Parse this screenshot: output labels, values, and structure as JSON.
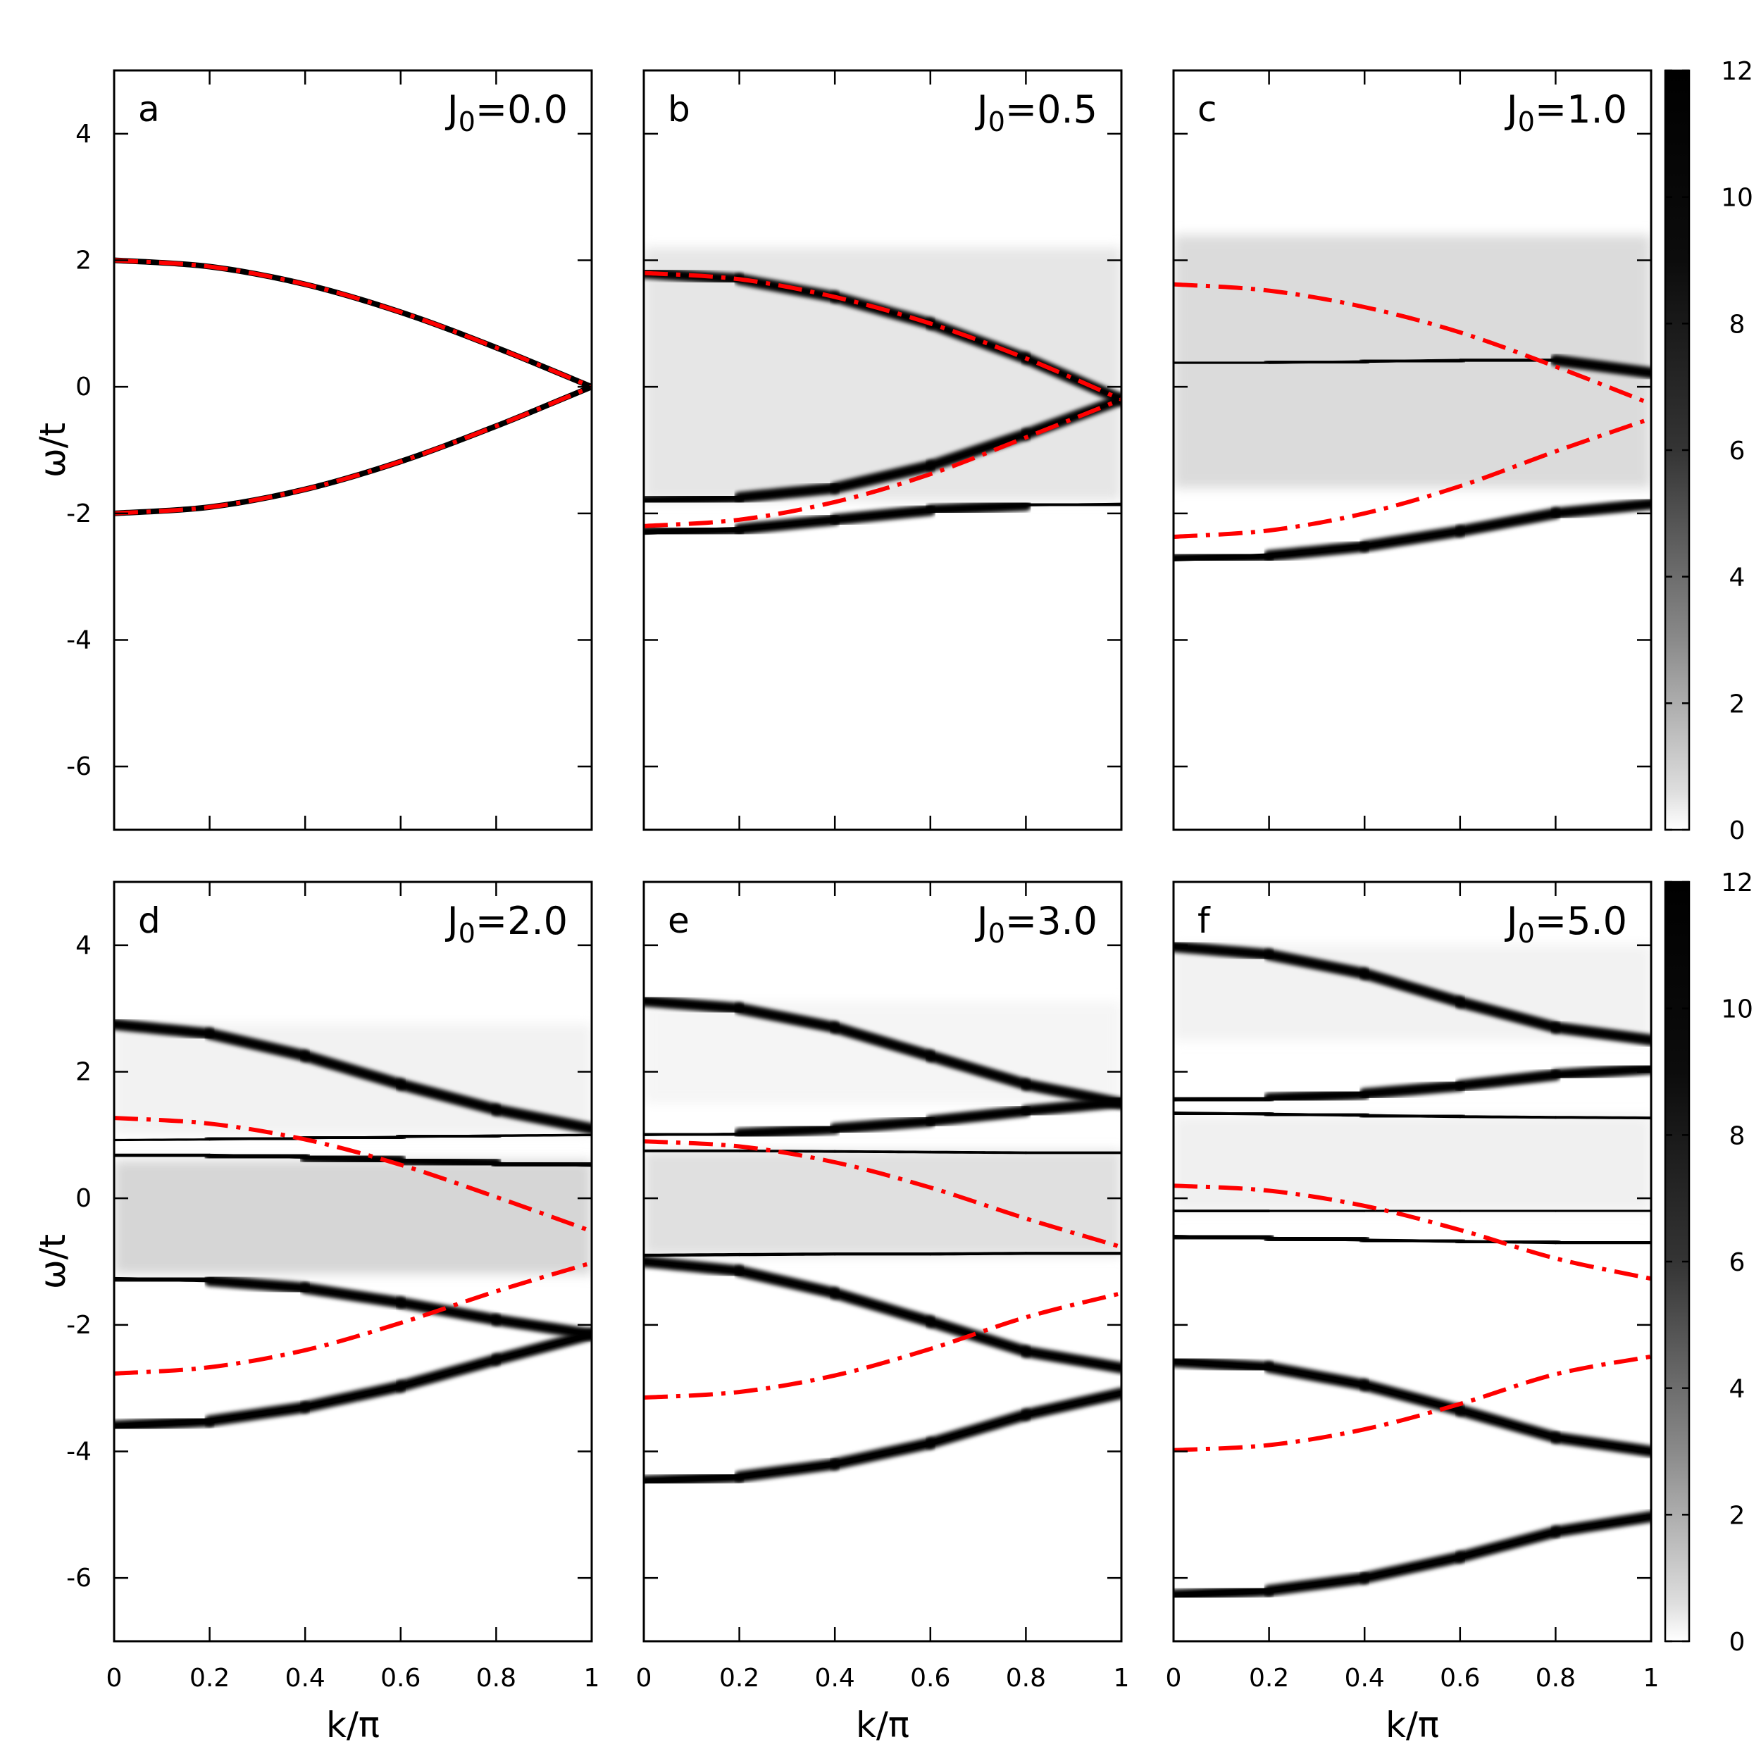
{
  "chart_data": {
    "type": "heatmap",
    "x_label_main": "k/",
    "x_label_pi": "π",
    "y_label_main": "ω/t",
    "xlim": [
      0,
      1
    ],
    "ylim": [
      -7,
      5
    ],
    "x_ticks": [
      "0",
      "0.2",
      "0.4",
      "0.6",
      "0.8",
      "1"
    ],
    "x_tick_values": [
      0,
      0.2,
      0.4,
      0.6,
      0.8,
      1
    ],
    "y_ticks": [
      "4",
      "2",
      "0",
      "-2",
      "-4",
      "-6"
    ],
    "y_tick_values": [
      4,
      2,
      0,
      -2,
      -4,
      -6
    ],
    "colorbar": {
      "range": [
        0,
        12
      ],
      "ticks": [
        "12",
        "10",
        "8",
        "6",
        "4",
        "2",
        "0"
      ],
      "tick_values": [
        12,
        10,
        8,
        6,
        4,
        2,
        0
      ],
      "colormap": "white-to-black"
    },
    "panels": [
      {
        "letter": "a",
        "param_symbol": "J",
        "param_sub": "0",
        "param_value": "=0.0",
        "red_curves": [
          {
            "x": [
              0,
              0.2,
              0.4,
              0.6,
              0.8,
              1.0
            ],
            "y": [
              2.0,
              1.9,
              1.62,
              1.18,
              0.62,
              0.0
            ]
          },
          {
            "x": [
              0,
              0.2,
              0.4,
              0.6,
              0.8,
              1.0
            ],
            "y": [
              -2.0,
              -1.9,
              -1.62,
              -1.18,
              -0.62,
              0.0
            ]
          }
        ],
        "sharp_bands": [],
        "continua": []
      },
      {
        "letter": "b",
        "param_symbol": "J",
        "param_sub": "0",
        "param_value": "=0.5",
        "red_curves": [
          {
            "x": [
              0,
              0.2,
              0.4,
              0.6,
              0.8,
              1.0
            ],
            "y": [
              1.8,
              1.7,
              1.42,
              1.0,
              0.45,
              -0.2
            ]
          },
          {
            "x": [
              0,
              0.2,
              0.4,
              0.6,
              0.8,
              1.0
            ],
            "y": [
              -2.2,
              -2.1,
              -1.82,
              -1.38,
              -0.8,
              -0.2
            ]
          }
        ],
        "sharp_bands": [
          {
            "x": [
              0,
              0.2,
              0.4,
              0.6,
              0.8,
              1.0
            ],
            "y": [
              -2.3,
              -2.25,
              -2.1,
              -1.95,
              -1.87,
              -1.85
            ],
            "strength": [
              1.0,
              0.9,
              0.7,
              0.35,
              0.15,
              0.08
            ]
          },
          {
            "x": [
              0,
              0.2,
              0.4,
              0.6,
              0.8,
              1.0
            ],
            "y": [
              1.8,
              1.7,
              1.42,
              1.0,
              0.45,
              -0.2
            ],
            "strength": [
              0.15,
              0.2,
              0.3,
              0.4,
              0.55,
              0.6
            ]
          },
          {
            "x": [
              0,
              0.2,
              0.4,
              0.6,
              0.8,
              1.0
            ],
            "y": [
              -1.8,
              -1.75,
              -1.6,
              -1.25,
              -0.75,
              -0.2
            ],
            "strength": [
              0.2,
              0.25,
              0.35,
              0.45,
              0.5,
              0.55
            ]
          }
        ],
        "continua": [
          {
            "y_top": 2.2,
            "y_bottom": -1.8,
            "strength": 0.1
          }
        ]
      },
      {
        "letter": "c",
        "param_symbol": "J",
        "param_sub": "0",
        "param_value": "=1.0",
        "red_curves": [
          {
            "x": [
              0,
              0.2,
              0.4,
              0.6,
              0.8,
              1.0
            ],
            "y": [
              1.62,
              1.52,
              1.26,
              0.86,
              0.32,
              -0.27
            ]
          },
          {
            "x": [
              0,
              0.2,
              0.4,
              0.6,
              0.8,
              1.0
            ],
            "y": [
              -2.37,
              -2.27,
              -2.0,
              -1.57,
              -1.02,
              -0.5
            ]
          }
        ],
        "sharp_bands": [
          {
            "x": [
              0,
              0.2,
              0.4,
              0.6,
              0.8,
              1.0
            ],
            "y": [
              -2.72,
              -2.67,
              -2.52,
              -2.28,
              -2.0,
              -1.85
            ],
            "strength": [
              1.0,
              0.95,
              0.85,
              0.6,
              0.3,
              0.15
            ]
          },
          {
            "x": [
              0,
              0.2,
              0.4,
              0.6,
              0.8,
              1.0
            ],
            "y": [
              0.38,
              0.38,
              0.4,
              0.42,
              0.42,
              0.22
            ],
            "strength": [
              0.08,
              0.1,
              0.15,
              0.3,
              0.45,
              0.3
            ]
          }
        ],
        "continua": [
          {
            "y_top": 2.4,
            "y_bottom": -1.6,
            "strength": 0.14
          }
        ]
      },
      {
        "letter": "d",
        "param_symbol": "J",
        "param_sub": "0",
        "param_value": "=2.0",
        "red_curves": [
          {
            "x": [
              0,
              0.2,
              0.4,
              0.6,
              0.8,
              1.0
            ],
            "y": [
              1.27,
              1.18,
              0.93,
              0.53,
              0.02,
              -0.52
            ]
          },
          {
            "x": [
              0,
              0.2,
              0.4,
              0.6,
              0.8,
              1.0
            ],
            "y": [
              -2.77,
              -2.67,
              -2.4,
              -1.97,
              -1.47,
              -1.02
            ]
          }
        ],
        "sharp_bands": [
          {
            "x": [
              0,
              0.2,
              0.4,
              0.6,
              0.8,
              1.0
            ],
            "y": [
              -3.6,
              -3.52,
              -3.3,
              -2.97,
              -2.55,
              -2.15
            ],
            "strength": [
              1.0,
              1.0,
              1.0,
              0.95,
              0.9,
              0.85
            ]
          },
          {
            "x": [
              0,
              0.2,
              0.4,
              0.6,
              0.8,
              1.0
            ],
            "y": [
              -1.27,
              -1.3,
              -1.42,
              -1.65,
              -1.92,
              -2.15
            ],
            "strength": [
              0.45,
              0.45,
              0.45,
              0.45,
              0.45,
              0.5
            ]
          },
          {
            "x": [
              0,
              0.2,
              0.4,
              0.6,
              0.8,
              1.0
            ],
            "y": [
              0.68,
              0.68,
              0.65,
              0.6,
              0.55,
              0.52
            ],
            "strength": [
              0.4,
              0.4,
              0.35,
              0.3,
              0.3,
              0.25
            ]
          },
          {
            "x": [
              0,
              0.2,
              0.4,
              0.6,
              0.8,
              1.0
            ],
            "y": [
              0.92,
              0.93,
              0.95,
              0.97,
              0.99,
              1.0
            ],
            "strength": [
              0.05,
              0.05,
              0.08,
              0.1,
              0.12,
              0.12
            ]
          },
          {
            "x": [
              0,
              0.2,
              0.4,
              0.6,
              0.8,
              1.0
            ],
            "y": [
              2.75,
              2.6,
              2.25,
              1.8,
              1.4,
              1.1
            ],
            "strength": [
              0.25,
              0.15,
              0.08,
              0.05,
              0.03,
              0.02
            ]
          }
        ],
        "continua": [
          {
            "y_top": 2.75,
            "y_bottom": 1.0,
            "strength": 0.05
          },
          {
            "y_top": 0.6,
            "y_bottom": -1.2,
            "strength": 0.16
          }
        ]
      },
      {
        "letter": "e",
        "param_symbol": "J",
        "param_sub": "0",
        "param_value": "=3.0",
        "red_curves": [
          {
            "x": [
              0,
              0.2,
              0.4,
              0.6,
              0.8,
              1.0
            ],
            "y": [
              0.9,
              0.82,
              0.57,
              0.17,
              -0.32,
              -0.77
            ]
          },
          {
            "x": [
              0,
              0.2,
              0.4,
              0.6,
              0.8,
              1.0
            ],
            "y": [
              -3.15,
              -3.06,
              -2.8,
              -2.38,
              -1.88,
              -1.5
            ]
          }
        ],
        "sharp_bands": [
          {
            "x": [
              0,
              0.2,
              0.4,
              0.6,
              0.8,
              1.0
            ],
            "y": [
              -4.47,
              -4.4,
              -4.2,
              -3.87,
              -3.42,
              -3.08
            ],
            "strength": [
              1.0,
              1.0,
              1.0,
              1.0,
              0.95,
              0.9
            ]
          },
          {
            "x": [
              0,
              0.2,
              0.4,
              0.6,
              0.8,
              1.0
            ],
            "y": [
              -1.0,
              -1.15,
              -1.5,
              -1.95,
              -2.42,
              -2.68
            ],
            "strength": [
              0.6,
              0.6,
              0.6,
              0.6,
              0.6,
              0.6
            ]
          },
          {
            "x": [
              0,
              0.2,
              0.4,
              0.6,
              0.8,
              1.0
            ],
            "y": [
              -0.9,
              -0.89,
              -0.88,
              -0.88,
              -0.87,
              -0.87
            ],
            "strength": [
              0.35,
              0.35,
              0.35,
              0.35,
              0.35,
              0.35
            ]
          },
          {
            "x": [
              0,
              0.2,
              0.4,
              0.6,
              0.8,
              1.0
            ],
            "y": [
              0.75,
              0.75,
              0.74,
              0.73,
              0.72,
              0.72
            ],
            "strength": [
              0.2,
              0.2,
              0.2,
              0.2,
              0.2,
              0.2
            ]
          },
          {
            "x": [
              0,
              0.2,
              0.4,
              0.6,
              0.8,
              1.0
            ],
            "y": [
              1.0,
              1.02,
              1.1,
              1.22,
              1.38,
              1.52
            ],
            "strength": [
              0.05,
              0.08,
              0.12,
              0.15,
              0.2,
              0.22
            ]
          },
          {
            "x": [
              0,
              0.2,
              0.4,
              0.6,
              0.8,
              1.0
            ],
            "y": [
              3.12,
              3.0,
              2.7,
              2.25,
              1.8,
              1.5
            ],
            "strength": [
              0.25,
              0.15,
              0.08,
              0.05,
              0.03,
              0.02
            ]
          }
        ],
        "continua": [
          {
            "y_top": 3.1,
            "y_bottom": 1.5,
            "strength": 0.04
          },
          {
            "y_top": 0.75,
            "y_bottom": -0.9,
            "strength": 0.12
          }
        ]
      },
      {
        "letter": "f",
        "param_symbol": "J",
        "param_sub": "0",
        "param_value": "=5.0",
        "red_curves": [
          {
            "x": [
              0,
              0.2,
              0.4,
              0.6,
              0.8,
              1.0
            ],
            "y": [
              0.2,
              0.12,
              -0.12,
              -0.5,
              -0.95,
              -1.27
            ]
          },
          {
            "x": [
              0,
              0.2,
              0.4,
              0.6,
              0.8,
              1.0
            ],
            "y": [
              -3.98,
              -3.9,
              -3.65,
              -3.25,
              -2.78,
              -2.5
            ]
          }
        ],
        "sharp_bands": [
          {
            "x": [
              0,
              0.2,
              0.4,
              0.6,
              0.8,
              1.0
            ],
            "y": [
              -6.27,
              -6.2,
              -6.0,
              -5.67,
              -5.27,
              -5.03
            ],
            "strength": [
              1.0,
              1.0,
              1.0,
              1.0,
              1.0,
              0.95
            ]
          },
          {
            "x": [
              0,
              0.2,
              0.4,
              0.6,
              0.8,
              1.0
            ],
            "y": [
              -2.58,
              -2.67,
              -2.95,
              -3.35,
              -3.78,
              -4.0
            ],
            "strength": [
              0.9,
              0.9,
              0.9,
              0.9,
              0.9,
              0.9
            ]
          },
          {
            "x": [
              0,
              0.2,
              0.4,
              0.6,
              0.8,
              1.0
            ],
            "y": [
              -0.6,
              -0.63,
              -0.66,
              -0.68,
              -0.7,
              -0.7
            ],
            "strength": [
              0.25,
              0.3,
              0.3,
              0.3,
              0.3,
              0.3
            ]
          },
          {
            "x": [
              0,
              0.2,
              0.4,
              0.6,
              0.8,
              1.0
            ],
            "y": [
              -0.2,
              -0.2,
              -0.2,
              -0.2,
              -0.2,
              -0.2
            ],
            "strength": [
              0.25,
              0.1,
              0.05,
              0.03,
              0.02,
              0.02
            ]
          },
          {
            "x": [
              0,
              0.2,
              0.4,
              0.6,
              0.8,
              1.0
            ],
            "y": [
              1.35,
              1.33,
              1.31,
              1.29,
              1.28,
              1.27
            ],
            "strength": [
              0.25,
              0.25,
              0.25,
              0.25,
              0.25,
              0.25
            ]
          },
          {
            "x": [
              0,
              0.2,
              0.4,
              0.6,
              0.8,
              1.0
            ],
            "y": [
              1.55,
              1.58,
              1.65,
              1.78,
              1.95,
              2.05
            ],
            "strength": [
              0.1,
              0.15,
              0.2,
              0.3,
              0.4,
              0.45
            ]
          },
          {
            "x": [
              0,
              0.2,
              0.4,
              0.6,
              0.8,
              1.0
            ],
            "y": [
              3.98,
              3.85,
              3.55,
              3.1,
              2.7,
              2.5
            ],
            "strength": [
              0.3,
              0.2,
              0.12,
              0.08,
              0.05,
              0.05
            ]
          }
        ],
        "continua": [
          {
            "y_top": 4.0,
            "y_bottom": 2.5,
            "strength": 0.05
          },
          {
            "y_top": 1.3,
            "y_bottom": -0.2,
            "strength": 0.06
          }
        ]
      }
    ]
  }
}
